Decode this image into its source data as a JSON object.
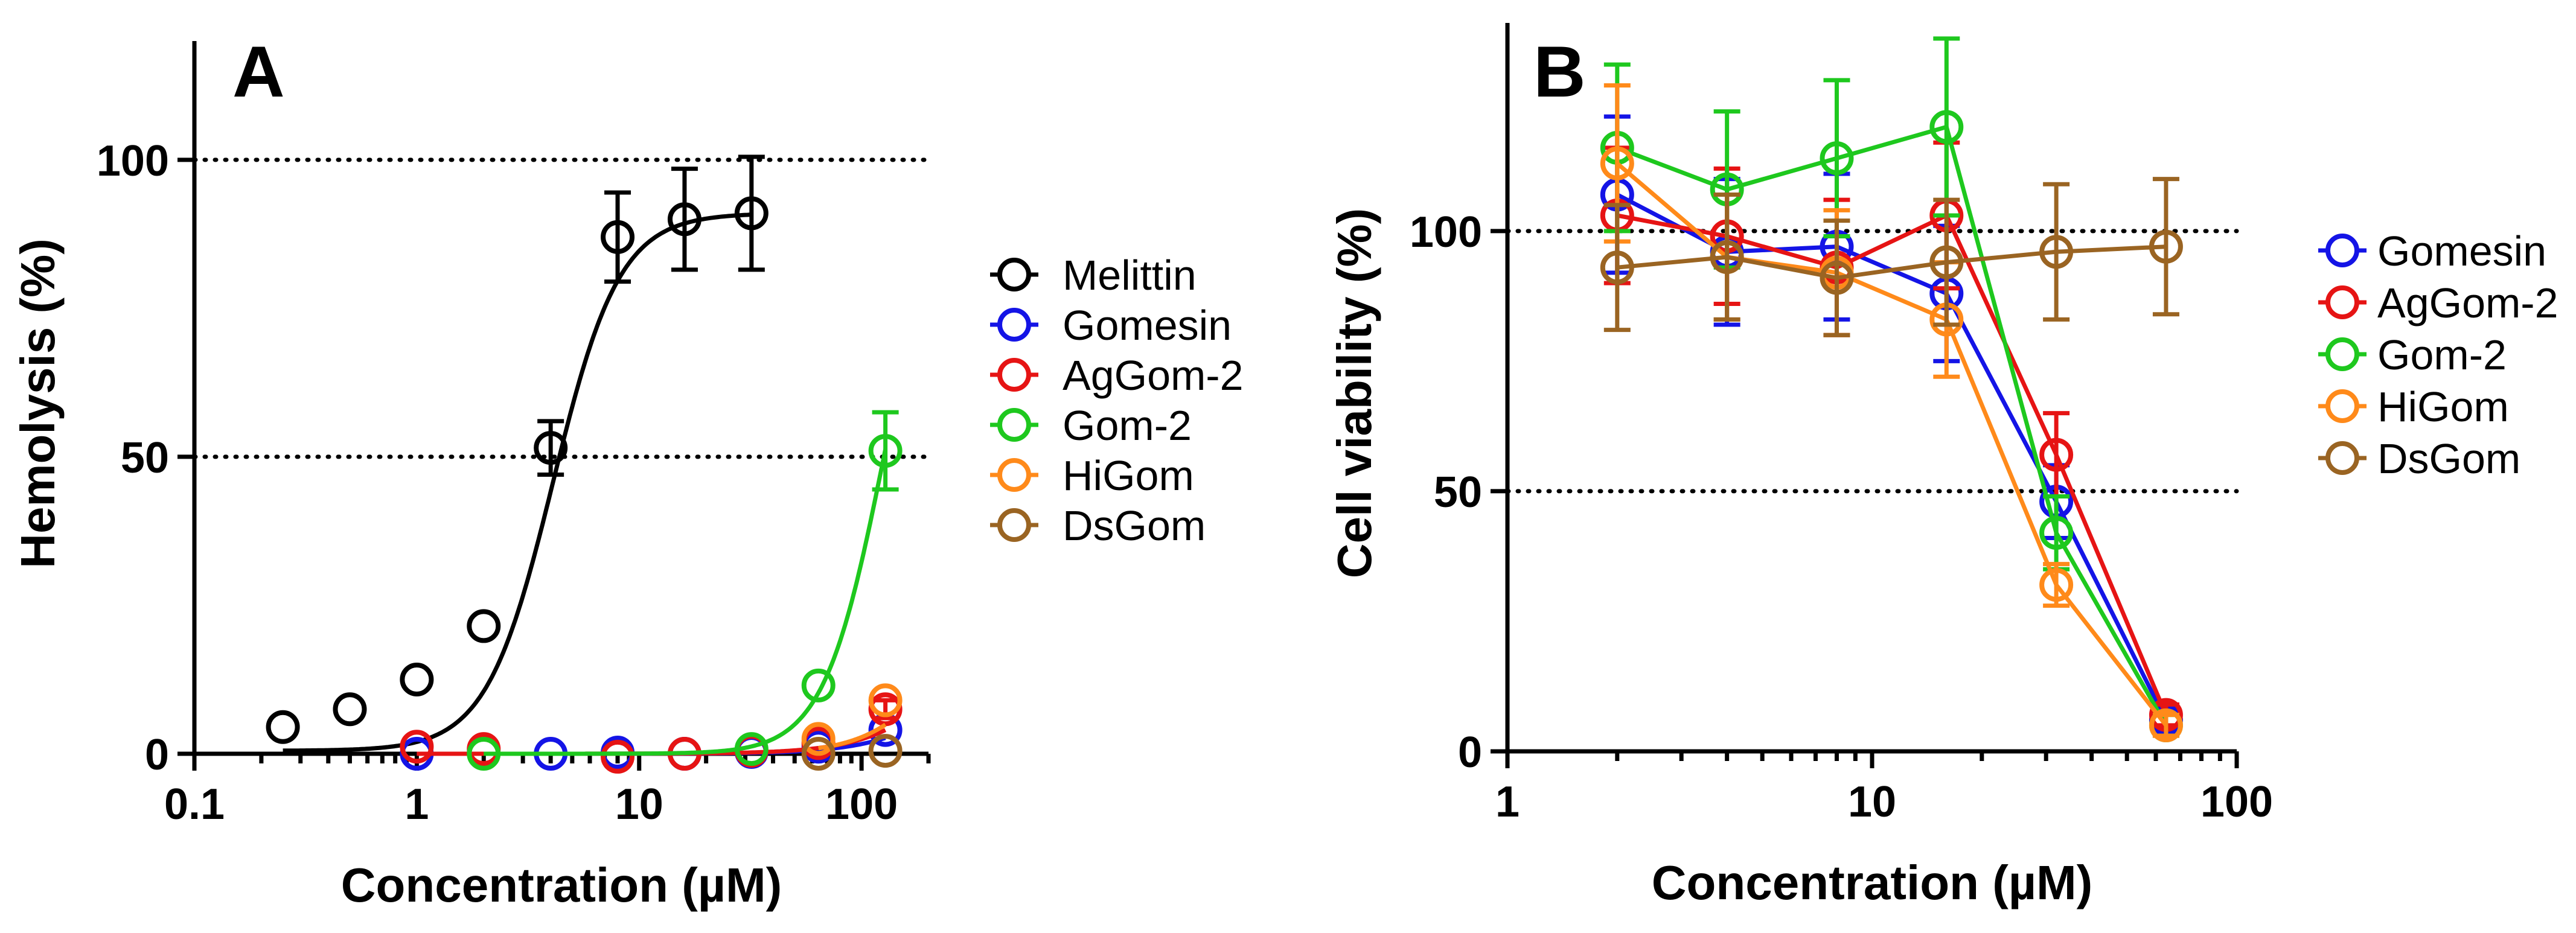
{
  "figure": {
    "colors": {
      "Melittin": "#000000",
      "Gomesin": "#1414e6",
      "AgGom-2": "#e61414",
      "Gom-2": "#1ec81e",
      "HiGom": "#ff8a1a",
      "DsGom": "#9a6422"
    }
  },
  "chart_data": [
    {
      "panel": "A",
      "type": "scatter",
      "xscale": "log",
      "xlim": [
        0.1,
        200
      ],
      "ylim": [
        0,
        120
      ],
      "xlabel": "Concentration (µM)",
      "ylabel": "Hemolysis (%)",
      "xticks": [
        0.1,
        1,
        10,
        100
      ],
      "xtick_labels": [
        "0.1",
        "1",
        "10",
        "100"
      ],
      "yticks": [
        0,
        50,
        100
      ],
      "ytick_labels": [
        "0",
        "50",
        "100"
      ],
      "reference_lines": [
        50,
        100
      ],
      "fit_curves": true,
      "legend": "right",
      "series": [
        {
          "name": "Melittin",
          "x": [
            0.25,
            0.5,
            1,
            2,
            4,
            8,
            16,
            32
          ],
          "y": [
            4.5,
            7.5,
            12.5,
            21.5,
            51.5,
            87,
            90,
            91
          ],
          "err": [
            0,
            0,
            0,
            0,
            4.5,
            7.5,
            8.5,
            9.5
          ],
          "fit": {
            "bottom": 0.5,
            "top": 91,
            "ec50": 4.1,
            "hill": 2.9
          }
        },
        {
          "name": "Gomesin",
          "x": [
            1,
            4,
            8,
            16,
            32,
            64,
            128
          ],
          "y": [
            0,
            0,
            0.2,
            0,
            0.3,
            1.2,
            4
          ],
          "err": [
            0,
            0,
            0,
            0,
            0,
            0,
            0
          ],
          "fit": {
            "bottom": 0,
            "top": 20,
            "ec50": 300,
            "hill": 2.2
          }
        },
        {
          "name": "AgGom-2",
          "x": [
            1,
            2,
            8,
            16,
            32,
            64,
            128
          ],
          "y": [
            1.2,
            0.8,
            -0.5,
            0,
            0.5,
            1.8,
            7.5
          ],
          "err": [
            0,
            0,
            0,
            0,
            0,
            0,
            1.5
          ],
          "fit": {
            "bottom": 0,
            "top": 30,
            "ec50": 300,
            "hill": 2.2
          }
        },
        {
          "name": "Gom-2",
          "x": [
            2,
            32,
            64,
            128
          ],
          "y": [
            0,
            0.8,
            11.5,
            51
          ],
          "err": [
            0,
            0,
            0,
            6.5
          ],
          "fit": {
            "bottom": 0,
            "top": 100,
            "ec50": 126,
            "hill": 3.2
          }
        },
        {
          "name": "HiGom",
          "x": [
            64,
            128
          ],
          "y": [
            2.5,
            9
          ],
          "err": [
            0,
            0
          ],
          "fit": {
            "bottom": 0,
            "top": 30,
            "ec50": 240,
            "hill": 2.6
          }
        },
        {
          "name": "DsGom",
          "x": [
            64,
            128
          ],
          "y": [
            0,
            0.5
          ],
          "err": [
            0,
            0
          ],
          "fit": null
        }
      ]
    },
    {
      "panel": "B",
      "type": "line",
      "xscale": "log",
      "xlim": [
        1,
        100
      ],
      "ylim": [
        0,
        140
      ],
      "xlabel": "Concentration (µM)",
      "ylabel": "Cell viability (%)",
      "xticks": [
        1,
        10,
        100
      ],
      "xtick_labels": [
        "1",
        "10",
        "100"
      ],
      "yticks": [
        0,
        50,
        100
      ],
      "ytick_labels": [
        "0",
        "50",
        "100"
      ],
      "reference_lines": [
        50,
        100
      ],
      "legend": "right",
      "series": [
        {
          "name": "Gomesin",
          "x": [
            2,
            4,
            8,
            16,
            32,
            64
          ],
          "y": [
            107,
            96,
            97,
            88,
            48,
            6
          ],
          "err": [
            15,
            14,
            14,
            13,
            7,
            2
          ]
        },
        {
          "name": "AgGom-2",
          "x": [
            2,
            4,
            8,
            16,
            32,
            64
          ],
          "y": [
            103,
            99,
            93,
            103,
            57,
            7
          ],
          "err": [
            13,
            13,
            13,
            14,
            8,
            2
          ]
        },
        {
          "name": "Gom-2",
          "x": [
            2,
            4,
            8,
            16,
            32,
            64
          ],
          "y": [
            116,
            108,
            114,
            120,
            42,
            5
          ],
          "err": [
            16,
            15,
            15,
            17,
            7,
            2
          ]
        },
        {
          "name": "HiGom",
          "x": [
            2,
            4,
            8,
            16,
            32,
            64
          ],
          "y": [
            113,
            95,
            92,
            83,
            32,
            5
          ],
          "err": [
            15,
            12,
            12,
            11,
            4,
            2
          ]
        },
        {
          "name": "DsGom",
          "x": [
            2,
            4,
            8,
            16,
            32,
            64
          ],
          "y": [
            93,
            95,
            91,
            94,
            96,
            97
          ],
          "err": [
            12,
            12,
            11,
            12,
            13,
            13
          ]
        }
      ]
    }
  ]
}
